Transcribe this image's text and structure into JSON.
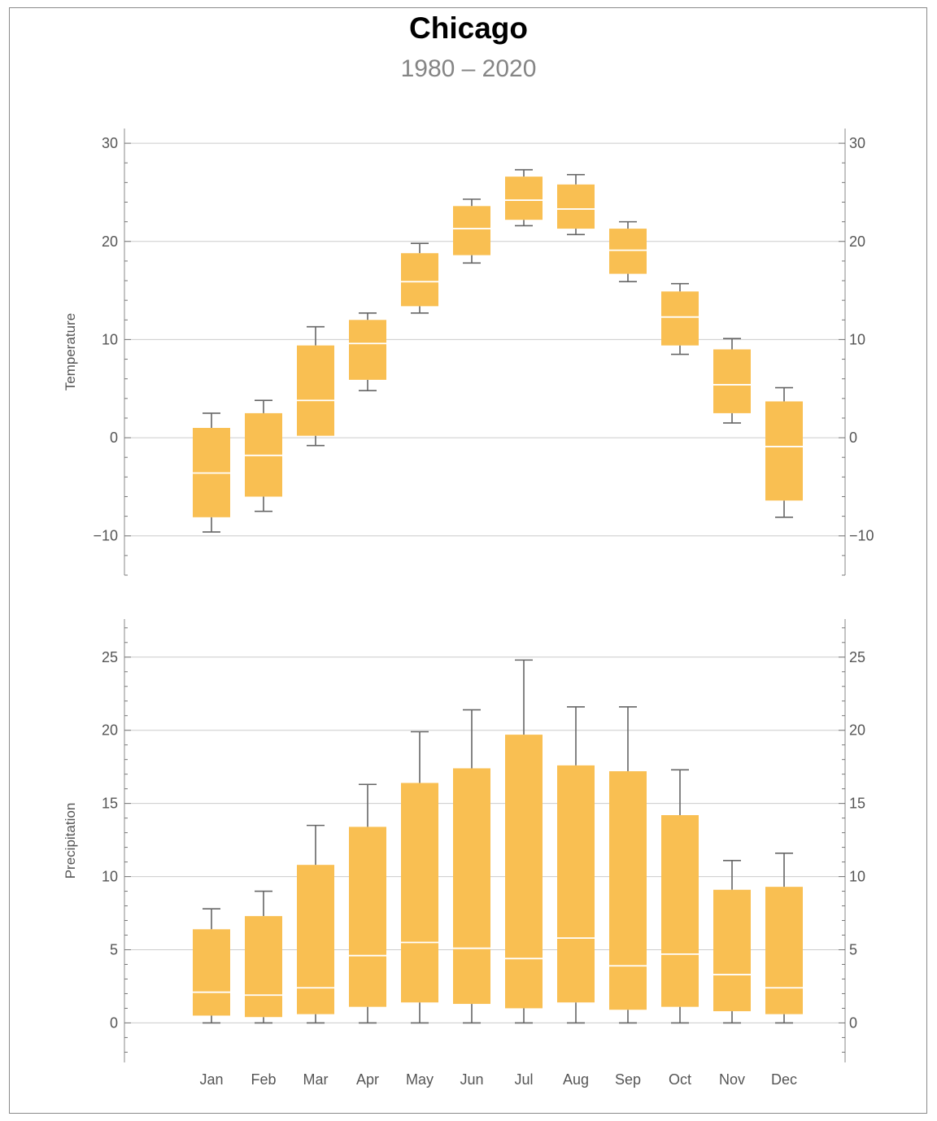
{
  "title": "Chicago",
  "subtitle": "1980 – 2020",
  "colors": {
    "box": "#F9BF52",
    "median": "#ffffff",
    "whisker": "#666666",
    "grid": "#cccccc",
    "frame": "#8a8a8a"
  },
  "chart_data": [
    {
      "type": "box",
      "ylabel": "Temperature",
      "ylim": [
        -14,
        31.5
      ],
      "yticks": [
        -10,
        0,
        10,
        20,
        30
      ],
      "ytick_labels": [
        "−10",
        "0",
        "10",
        "20",
        "30"
      ],
      "grid": true,
      "categories": [
        "Jan",
        "Feb",
        "Mar",
        "Apr",
        "May",
        "Jun",
        "Jul",
        "Aug",
        "Sep",
        "Oct",
        "Nov",
        "Dec"
      ],
      "boxes": [
        {
          "min": -9.6,
          "q1": -8.1,
          "median": -3.6,
          "q3": 1.0,
          "max": 2.5
        },
        {
          "min": -7.5,
          "q1": -6.0,
          "median": -1.8,
          "q3": 2.5,
          "max": 3.8
        },
        {
          "min": -0.8,
          "q1": 0.2,
          "median": 3.8,
          "q3": 9.4,
          "max": 11.3
        },
        {
          "min": 4.8,
          "q1": 5.9,
          "median": 9.6,
          "q3": 12.0,
          "max": 12.7
        },
        {
          "min": 12.7,
          "q1": 13.4,
          "median": 15.9,
          "q3": 18.8,
          "max": 19.8
        },
        {
          "min": 17.8,
          "q1": 18.6,
          "median": 21.3,
          "q3": 23.6,
          "max": 24.3
        },
        {
          "min": 21.6,
          "q1": 22.2,
          "median": 24.2,
          "q3": 26.6,
          "max": 27.3
        },
        {
          "min": 20.7,
          "q1": 21.3,
          "median": 23.3,
          "q3": 25.8,
          "max": 26.8
        },
        {
          "min": 15.9,
          "q1": 16.7,
          "median": 19.1,
          "q3": 21.3,
          "max": 22.0
        },
        {
          "min": 8.5,
          "q1": 9.4,
          "median": 12.3,
          "q3": 14.9,
          "max": 15.7
        },
        {
          "min": 1.5,
          "q1": 2.5,
          "median": 5.4,
          "q3": 9.0,
          "max": 10.1
        },
        {
          "min": -8.1,
          "q1": -6.4,
          "median": -0.9,
          "q3": 3.7,
          "max": 5.1
        }
      ]
    },
    {
      "type": "box",
      "ylabel": "Precipitation",
      "ylim": [
        -2.7,
        27.6
      ],
      "yticks": [
        0,
        5,
        10,
        15,
        20,
        25
      ],
      "ytick_labels": [
        "0",
        "5",
        "10",
        "15",
        "20",
        "25"
      ],
      "grid": true,
      "categories": [
        "Jan",
        "Feb",
        "Mar",
        "Apr",
        "May",
        "Jun",
        "Jul",
        "Aug",
        "Sep",
        "Oct",
        "Nov",
        "Dec"
      ],
      "boxes": [
        {
          "min": 0,
          "q1": 0.5,
          "median": 2.1,
          "q3": 6.4,
          "max": 7.8
        },
        {
          "min": 0,
          "q1": 0.4,
          "median": 1.9,
          "q3": 7.3,
          "max": 9.0
        },
        {
          "min": 0,
          "q1": 0.6,
          "median": 2.4,
          "q3": 10.8,
          "max": 13.5
        },
        {
          "min": 0,
          "q1": 1.1,
          "median": 4.6,
          "q3": 13.4,
          "max": 16.3
        },
        {
          "min": 0,
          "q1": 1.4,
          "median": 5.5,
          "q3": 16.4,
          "max": 19.9
        },
        {
          "min": 0,
          "q1": 1.3,
          "median": 5.1,
          "q3": 17.4,
          "max": 21.4
        },
        {
          "min": 0,
          "q1": 1.0,
          "median": 4.4,
          "q3": 19.7,
          "max": 24.8
        },
        {
          "min": 0,
          "q1": 1.4,
          "median": 5.8,
          "q3": 17.6,
          "max": 21.6
        },
        {
          "min": 0,
          "q1": 0.9,
          "median": 3.9,
          "q3": 17.2,
          "max": 21.6
        },
        {
          "min": 0,
          "q1": 1.1,
          "median": 4.7,
          "q3": 14.2,
          "max": 17.3
        },
        {
          "min": 0,
          "q1": 0.8,
          "median": 3.3,
          "q3": 9.1,
          "max": 11.1
        },
        {
          "min": 0,
          "q1": 0.6,
          "median": 2.4,
          "q3": 9.3,
          "max": 11.6
        }
      ]
    }
  ]
}
